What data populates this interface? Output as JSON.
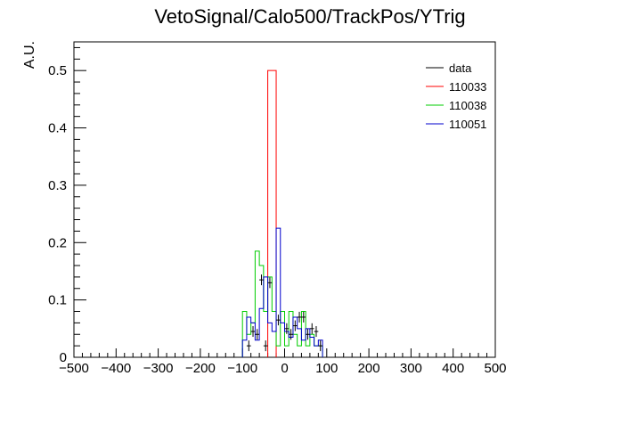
{
  "chart_data": {
    "type": "histogram",
    "title": "VetoSignal/Calo500/TrackPos/YTrig",
    "xlabel": "",
    "ylabel": "A.U.",
    "xlim": [
      -500,
      500
    ],
    "ylim": [
      0,
      0.55
    ],
    "x_ticks": [
      -500,
      -400,
      -300,
      -200,
      -100,
      0,
      100,
      200,
      300,
      400,
      500
    ],
    "x_tick_labels": [
      "−500",
      "−400",
      "−300",
      "−200",
      "−100",
      "0",
      "100",
      "200",
      "300",
      "400",
      "500"
    ],
    "y_ticks": [
      0,
      0.1,
      0.2,
      0.3,
      0.4,
      0.5
    ],
    "y_tick_labels": [
      "0",
      "0.1",
      "0.2",
      "0.3",
      "0.4",
      "0.5"
    ],
    "grid": false,
    "legend_position": "top-right",
    "bin_width": 10,
    "series": [
      {
        "name": "data",
        "style": "points",
        "color": "#000000",
        "points": [
          {
            "x": -85,
            "y": 0.02
          },
          {
            "x": -75,
            "y": 0.045
          },
          {
            "x": -65,
            "y": 0.04
          },
          {
            "x": -55,
            "y": 0.135
          },
          {
            "x": -45,
            "y": 0.02
          },
          {
            "x": -35,
            "y": 0.13
          },
          {
            "x": -15,
            "y": 0.065
          },
          {
            "x": 5,
            "y": 0.05
          },
          {
            "x": 15,
            "y": 0.04
          },
          {
            "x": 25,
            "y": 0.055
          },
          {
            "x": 35,
            "y": 0.07
          },
          {
            "x": 45,
            "y": 0.07
          },
          {
            "x": 55,
            "y": 0.04
          },
          {
            "x": 65,
            "y": 0.05
          },
          {
            "x": 75,
            "y": 0.045
          },
          {
            "x": 85,
            "y": 0.02
          }
        ]
      },
      {
        "name": "110033",
        "style": "step",
        "color": "#ff0000",
        "bins": [
          {
            "lo": -40,
            "hi": -20,
            "value": 0.5
          }
        ]
      },
      {
        "name": "110038",
        "style": "step",
        "color": "#00cc00",
        "bins": [
          {
            "lo": -100,
            "hi": -90,
            "value": 0.08
          },
          {
            "lo": -90,
            "hi": -80,
            "value": 0.04
          },
          {
            "lo": -80,
            "hi": -70,
            "value": 0.06
          },
          {
            "lo": -70,
            "hi": -60,
            "value": 0.185
          },
          {
            "lo": -60,
            "hi": -50,
            "value": 0.16
          },
          {
            "lo": -50,
            "hi": -40,
            "value": 0.08
          },
          {
            "lo": -40,
            "hi": -30,
            "value": 0.14
          },
          {
            "lo": -30,
            "hi": -20,
            "value": 0.08
          },
          {
            "lo": -20,
            "hi": -10,
            "value": 0.02
          },
          {
            "lo": -10,
            "hi": 0,
            "value": 0.08
          },
          {
            "lo": 0,
            "hi": 10,
            "value": 0.02
          },
          {
            "lo": 10,
            "hi": 20,
            "value": 0.08
          },
          {
            "lo": 20,
            "hi": 30,
            "value": 0.04
          },
          {
            "lo": 30,
            "hi": 40,
            "value": 0.02
          },
          {
            "lo": 40,
            "hi": 50,
            "value": 0.08
          },
          {
            "lo": 50,
            "hi": 60,
            "value": 0.02
          },
          {
            "lo": 60,
            "hi": 70,
            "value": 0.04
          },
          {
            "lo": 70,
            "hi": 80,
            "value": 0.02
          },
          {
            "lo": 80,
            "hi": 90,
            "value": 0.02
          }
        ]
      },
      {
        "name": "110051",
        "style": "step",
        "color": "#0000cc",
        "bins": [
          {
            "lo": -100,
            "hi": -90,
            "value": 0.03
          },
          {
            "lo": -90,
            "hi": -80,
            "value": 0.07
          },
          {
            "lo": -80,
            "hi": -70,
            "value": 0.06
          },
          {
            "lo": -70,
            "hi": -60,
            "value": 0.03
          },
          {
            "lo": -60,
            "hi": -50,
            "value": 0.085
          },
          {
            "lo": -50,
            "hi": -40,
            "value": 0.14
          },
          {
            "lo": -40,
            "hi": -30,
            "value": 0.06
          },
          {
            "lo": -30,
            "hi": -20,
            "value": 0.045
          },
          {
            "lo": -20,
            "hi": -10,
            "value": 0.225
          },
          {
            "lo": -10,
            "hi": 0,
            "value": 0.06
          },
          {
            "lo": 0,
            "hi": 10,
            "value": 0.045
          },
          {
            "lo": 10,
            "hi": 20,
            "value": 0.035
          },
          {
            "lo": 20,
            "hi": 30,
            "value": 0.07
          },
          {
            "lo": 30,
            "hi": 40,
            "value": 0.05
          },
          {
            "lo": 40,
            "hi": 50,
            "value": 0.03
          },
          {
            "lo": 50,
            "hi": 60,
            "value": 0.05
          },
          {
            "lo": 60,
            "hi": 70,
            "value": 0.035
          },
          {
            "lo": 70,
            "hi": 80,
            "value": 0.02
          },
          {
            "lo": 80,
            "hi": 90,
            "value": 0.03
          }
        ]
      }
    ]
  }
}
